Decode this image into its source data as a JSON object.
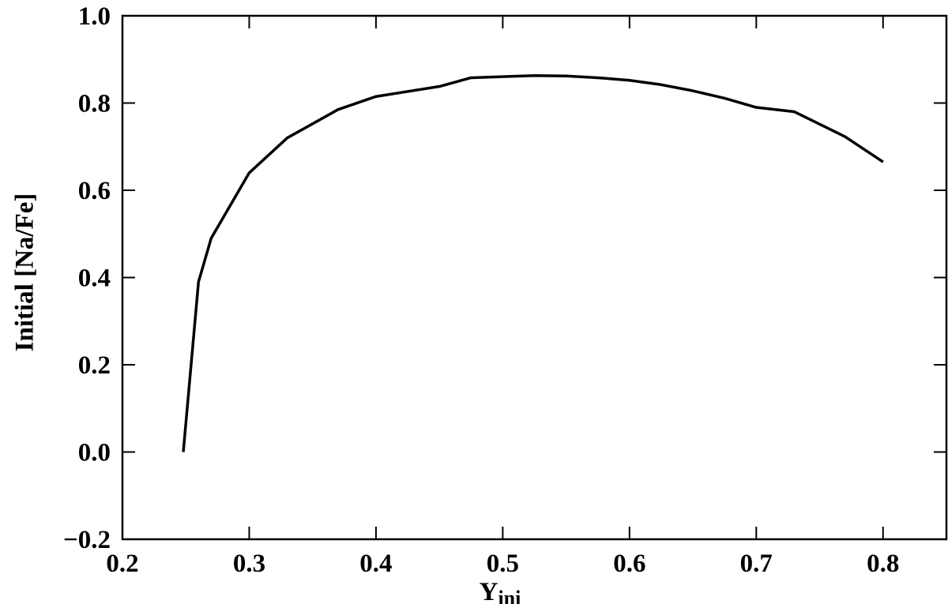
{
  "chart_data": {
    "type": "line",
    "xlabel": {
      "text": "Y",
      "subscript": "ini"
    },
    "ylabel": "Initial [Na/Fe]",
    "x": [
      0.248,
      0.26,
      0.27,
      0.3,
      0.33,
      0.37,
      0.4,
      0.45,
      0.475,
      0.525,
      0.55,
      0.575,
      0.6,
      0.625,
      0.65,
      0.675,
      0.7,
      0.73,
      0.77,
      0.8
    ],
    "values": [
      0.0,
      0.39,
      0.49,
      0.64,
      0.72,
      0.785,
      0.815,
      0.838,
      0.858,
      0.863,
      0.862,
      0.858,
      0.852,
      0.842,
      0.828,
      0.811,
      0.79,
      0.78,
      0.723,
      0.665
    ],
    "color": "#000000",
    "xlim": [
      0.2,
      0.85
    ],
    "ylim": [
      -0.2,
      1.0
    ],
    "xticks": [
      0.2,
      0.3,
      0.4,
      0.5,
      0.6,
      0.7,
      0.8
    ],
    "yticks": [
      {
        "value": -0.2,
        "label": "−0.2"
      },
      {
        "value": 0,
        "label": "0.0"
      },
      0.2,
      0.4,
      0.6,
      0.8,
      {
        "value": 1.0,
        "label": "1.0"
      }
    ]
  }
}
